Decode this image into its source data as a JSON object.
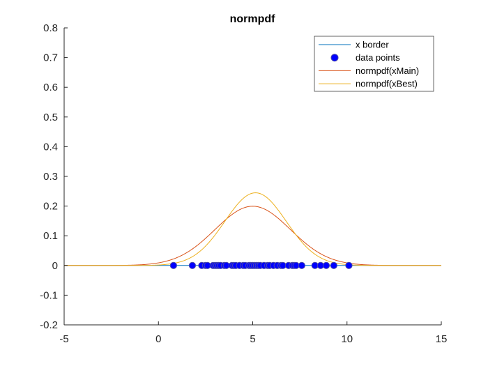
{
  "chart_data": {
    "type": "line",
    "title": "normpdf",
    "xlabel": "",
    "ylabel": "",
    "xlim": [
      -5,
      15
    ],
    "ylim": [
      -0.2,
      0.8
    ],
    "xticks": [
      -5,
      0,
      5,
      10,
      15
    ],
    "yticks": [
      -0.2,
      -0.1,
      0,
      0.1,
      0.2,
      0.3,
      0.4,
      0.5,
      0.6,
      0.7,
      0.8
    ],
    "xtick_labels": [
      "-5",
      "0",
      "5",
      "10",
      "15"
    ],
    "ytick_labels": [
      "-0.2",
      "-0.1",
      "0",
      "0.1",
      "0.2",
      "0.3",
      "0.4",
      "0.5",
      "0.6",
      "0.7",
      "0.8"
    ],
    "grid": false,
    "legend_position": "top-right",
    "series": [
      {
        "name": "x border",
        "kind": "line",
        "color": "#0072BD",
        "x": [
          -5,
          15
        ],
        "y": [
          0,
          0
        ]
      },
      {
        "name": "data points",
        "kind": "scatter",
        "color": "#0000FF",
        "edge_color": "#4D4DA8",
        "x": [
          0.8,
          1.8,
          2.3,
          2.5,
          2.6,
          2.9,
          3.0,
          3.1,
          3.2,
          3.3,
          3.5,
          3.6,
          3.9,
          4.0,
          4.1,
          4.3,
          4.5,
          4.6,
          4.8,
          4.9,
          5.0,
          5.1,
          5.2,
          5.3,
          5.4,
          5.6,
          5.8,
          5.9,
          6.1,
          6.3,
          6.5,
          6.6,
          6.9,
          7.1,
          7.2,
          7.3,
          7.6,
          8.3,
          8.6,
          8.9,
          9.3,
          10.1
        ],
        "y": [
          0,
          0,
          0,
          0,
          0,
          0,
          0,
          0,
          0,
          0,
          0,
          0,
          0,
          0,
          0,
          0,
          0,
          0,
          0,
          0,
          0,
          0,
          0,
          0,
          0,
          0,
          0,
          0,
          0,
          0,
          0,
          0,
          0,
          0,
          0,
          0,
          0,
          0,
          0,
          0,
          0,
          0
        ]
      },
      {
        "name": "normpdf(xMain)",
        "kind": "curve",
        "color": "#D95319",
        "mu": 5.0,
        "sigma": 2.0,
        "peak": 0.1995
      },
      {
        "name": "normpdf(xBest)",
        "kind": "curve",
        "color": "#EDB120",
        "mu": 5.15,
        "sigma": 1.63,
        "peak": 0.2447
      }
    ]
  }
}
